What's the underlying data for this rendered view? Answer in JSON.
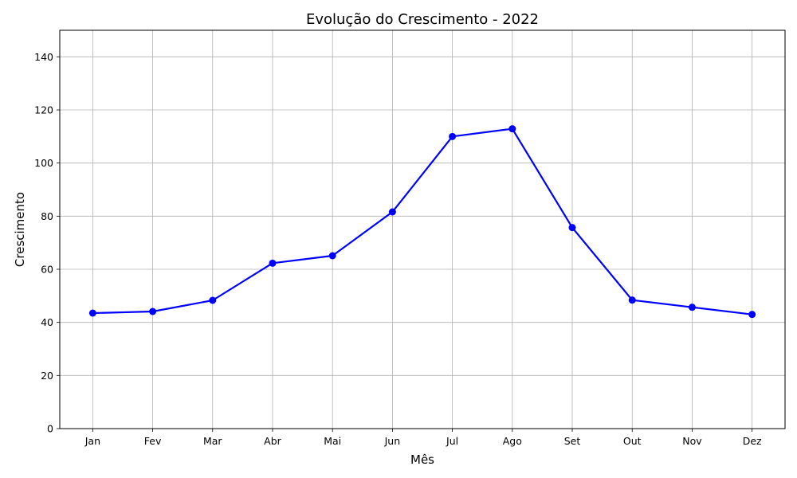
{
  "chart_data": {
    "type": "line",
    "title": "Evolução do Crescimento - 2022",
    "xlabel": "Mês",
    "ylabel": "Crescimento",
    "categories": [
      "Jan",
      "Fev",
      "Mar",
      "Abr",
      "Mai",
      "Jun",
      "Jul",
      "Ago",
      "Set",
      "Out",
      "Nov",
      "Dez"
    ],
    "series": [
      {
        "values": [
          43.5,
          44.1,
          48.3,
          62.3,
          65.1,
          81.6,
          110.0,
          112.9,
          75.7,
          48.4,
          45.7,
          43.0
        ],
        "color": "#0000ff",
        "marker": "circle"
      }
    ],
    "ylim": [
      0,
      150
    ],
    "yticks": [
      0,
      20,
      40,
      60,
      80,
      100,
      120,
      140
    ],
    "grid": true
  }
}
